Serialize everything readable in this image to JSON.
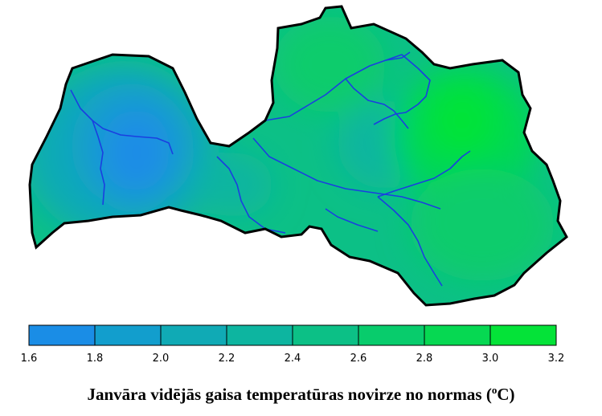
{
  "map": {
    "title_prefix": "Janvāra vidējās gaisa temperatūras novirze no normas (",
    "title_superscript": "o",
    "title_suffix": "C)",
    "colorbar": {
      "ticks": [
        "1.6",
        "1.8",
        "2.0",
        "2.2",
        "2.4",
        "2.6",
        "2.8",
        "3.0",
        "3.2"
      ],
      "colors": [
        "#1a8de6",
        "#129ecd",
        "#10aab5",
        "#0db5a0",
        "#0cc086",
        "#08cc6c",
        "#06d852",
        "#04e338"
      ]
    },
    "colors": {
      "outline": "#000000",
      "rivers": "#1a3fe0"
    }
  }
}
